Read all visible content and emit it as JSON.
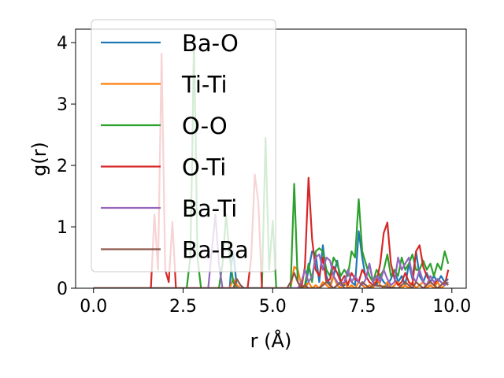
{
  "chart_data": {
    "type": "line",
    "xlabel": "r (Å)",
    "ylabel": "g(r)",
    "xlim": [
      -0.5,
      10.4
    ],
    "ylim": [
      0,
      4.22
    ],
    "xticks": [
      "0.0",
      "2.5",
      "5.0",
      "7.5",
      "10.0"
    ],
    "xtick_values": [
      0,
      2.5,
      5,
      7.5,
      10
    ],
    "yticks": [
      "0",
      "1",
      "2",
      "3",
      "4"
    ],
    "ytick_values": [
      0,
      1,
      2,
      3,
      4
    ],
    "grid": false,
    "legend_position": "upper-left",
    "series": [
      {
        "name": "Ba-O",
        "color": "#1f77b4",
        "x": [
          0,
          1.6,
          1.7,
          3.8,
          3.85,
          3.9,
          3.95,
          4.0,
          5.9,
          6.0,
          6.1,
          6.2,
          6.3,
          6.4,
          6.5,
          6.6,
          6.7,
          6.8,
          6.9,
          7.0,
          7.1,
          7.2,
          7.3,
          7.4,
          7.5,
          7.6,
          7.7,
          7.8,
          7.9,
          8.0,
          8.1,
          8.2,
          8.3,
          8.4,
          8.5,
          8.6,
          8.7,
          8.8,
          8.9,
          9.0,
          9.1,
          9.2,
          9.3,
          9.4,
          9.5,
          9.6,
          9.7,
          9.8,
          9.9
        ],
        "y": [
          0,
          0,
          0,
          0,
          0.4,
          0.6,
          0.3,
          0,
          0,
          0.3,
          0.6,
          0.55,
          0.1,
          0.7,
          0.2,
          0.05,
          0.2,
          0.45,
          0.1,
          0.05,
          0.3,
          0.1,
          0.05,
          0.93,
          0.5,
          0.15,
          0.4,
          0.1,
          0.05,
          0.2,
          0.1,
          0.05,
          0.15,
          0.3,
          0.1,
          0.2,
          0.05,
          0.4,
          0.15,
          0.6,
          0.2,
          0.1,
          0.25,
          0.1,
          0.2,
          0.1,
          0.2,
          0.1,
          0.15
        ]
      },
      {
        "name": "Ti-Ti",
        "color": "#ff7f0e",
        "x": [
          0,
          3.8,
          3.9,
          4.0,
          4.1,
          5.5,
          5.6,
          5.7,
          5.8,
          5.9,
          6.0,
          6.1,
          6.2,
          6.3,
          6.4,
          6.5,
          6.6,
          6.7,
          6.8,
          6.9,
          7.0,
          7.1,
          7.2,
          7.3,
          7.4,
          7.5,
          7.6,
          7.7,
          7.8,
          7.9,
          8.0,
          8.1,
          8.2,
          8.3,
          8.4,
          8.5,
          8.6,
          8.7,
          8.8,
          8.9,
          9.0,
          9.1,
          9.2,
          9.3,
          9.4,
          9.5,
          9.6,
          9.7,
          9.8,
          9.9
        ],
        "y": [
          0,
          0,
          0.15,
          0.05,
          0,
          0,
          0.35,
          0.3,
          0.05,
          0,
          0.1,
          0,
          0.05,
          0,
          0.1,
          0.05,
          0,
          0.2,
          0.05,
          0,
          0.1,
          0,
          0.05,
          0,
          0.1,
          0.05,
          0,
          0.05,
          0,
          0.15,
          0.05,
          0,
          0.1,
          0,
          0.05,
          0.1,
          0,
          0.05,
          0,
          0.1,
          0,
          0.05,
          0.1,
          0,
          0.05,
          0,
          0.1,
          0,
          0.05,
          0.1
        ]
      },
      {
        "name": "O-O",
        "color": "#2ca02c",
        "x": [
          0,
          2.6,
          2.7,
          2.75,
          2.8,
          2.85,
          2.9,
          3.0,
          3.5,
          3.6,
          3.7,
          3.8,
          3.9,
          4.0,
          4.7,
          4.8,
          4.9,
          5.0,
          5.1,
          5.5,
          5.6,
          5.7,
          5.8,
          5.9,
          6.0,
          6.1,
          6.2,
          6.3,
          6.4,
          6.5,
          6.6,
          6.7,
          6.8,
          6.9,
          7.0,
          7.1,
          7.2,
          7.3,
          7.4,
          7.5,
          7.6,
          7.7,
          7.8,
          7.9,
          8.0,
          8.1,
          8.2,
          8.3,
          8.4,
          8.5,
          8.6,
          8.7,
          8.8,
          8.9,
          9.0,
          9.1,
          9.2,
          9.3,
          9.4,
          9.5,
          9.6,
          9.7,
          9.8,
          9.9
        ],
        "y": [
          0,
          0,
          0.5,
          2.0,
          4.0,
          2.5,
          0.5,
          0,
          0,
          0.4,
          1.2,
          0.5,
          0.1,
          0,
          0,
          2.45,
          0.3,
          1.1,
          0,
          0,
          1.7,
          0.1,
          0,
          0.05,
          0.4,
          0.1,
          0.6,
          0.65,
          0.6,
          0.3,
          0.2,
          0.5,
          0.4,
          0.2,
          0.3,
          0.2,
          0.6,
          0.5,
          1.45,
          0.6,
          0.4,
          0.2,
          0.1,
          0.3,
          0.2,
          0.3,
          0.55,
          0.2,
          0.3,
          0.2,
          0.5,
          0.3,
          0.4,
          0.55,
          0.3,
          0.3,
          0.45,
          0.3,
          0.4,
          0.2,
          0.4,
          0.3,
          0.6,
          0.4
        ]
      },
      {
        "name": "O-Ti",
        "color": "#d62728",
        "x": [
          0,
          1.6,
          1.7,
          1.8,
          1.9,
          2.0,
          2.1,
          2.2,
          2.3,
          4.3,
          4.4,
          4.5,
          4.6,
          4.7,
          5.8,
          5.9,
          6.0,
          6.1,
          6.2,
          6.3,
          6.4,
          6.5,
          6.6,
          6.7,
          6.8,
          6.9,
          7.0,
          7.1,
          7.2,
          7.3,
          7.4,
          7.5,
          7.6,
          7.7,
          7.8,
          7.9,
          8.0,
          8.1,
          8.2,
          8.3,
          8.4,
          8.5,
          8.6,
          8.7,
          8.8,
          8.9,
          9.0,
          9.1,
          9.2,
          9.3,
          9.4,
          9.5,
          9.6,
          9.7,
          9.8,
          9.9
        ],
        "y": [
          0,
          0,
          1.2,
          0.3,
          3.82,
          0.3,
          0.1,
          1.08,
          0,
          0,
          0.5,
          1.85,
          1.4,
          0,
          0,
          0.35,
          1.8,
          0.8,
          0.3,
          0.2,
          0.5,
          0.1,
          0.15,
          0.35,
          0.25,
          0.1,
          0.2,
          0.05,
          0.25,
          0.15,
          0.1,
          0.3,
          0.2,
          0.1,
          0.05,
          0.1,
          0.4,
          0.9,
          1.07,
          0.4,
          0.15,
          0.05,
          0.1,
          0.25,
          0.1,
          0.05,
          0.6,
          0.7,
          0.35,
          0.2,
          0.1,
          0.05,
          0.15,
          0.1,
          0.05,
          0.3
        ]
      },
      {
        "name": "Ba-Ti",
        "color": "#9467bd",
        "x": [
          0,
          3.2,
          3.3,
          3.4,
          3.5,
          3.6,
          5.7,
          5.8,
          5.9,
          6.0,
          6.1,
          6.2,
          6.3,
          6.4,
          6.5,
          6.6,
          6.7,
          6.8,
          6.9,
          7.0,
          7.1,
          7.2,
          7.3,
          7.4,
          7.5,
          7.6,
          7.7,
          7.8,
          7.9,
          8.0,
          8.1,
          8.2,
          8.3,
          8.4,
          8.5,
          8.6,
          8.7,
          8.8,
          8.9,
          9.0,
          9.1,
          9.2,
          9.3,
          9.4,
          9.5,
          9.6,
          9.7,
          9.8,
          9.9
        ],
        "y": [
          0,
          0,
          0.6,
          1.2,
          0.4,
          0,
          0,
          0.1,
          0.3,
          0.1,
          0.2,
          0.5,
          0.55,
          0.3,
          0.5,
          0.45,
          0.2,
          0.1,
          0.05,
          0.1,
          0.3,
          0.1,
          0.2,
          0.1,
          0.05,
          0.15,
          0.4,
          0.1,
          0.2,
          0.1,
          0.3,
          0.15,
          0.05,
          0.1,
          0.5,
          0.3,
          0.4,
          0.5,
          0.2,
          0.1,
          0.3,
          0.1,
          0.05,
          0.2,
          0.1,
          0.15,
          0.1,
          0.05,
          0.1
        ]
      },
      {
        "name": "Ba-Ba",
        "color": "#8c564b",
        "x": [
          0,
          3.9,
          4.0,
          4.1,
          4.2,
          5.4,
          5.5,
          5.6,
          5.7,
          5.8,
          5.9,
          6.0,
          6.3,
          6.4,
          6.5,
          6.6,
          6.7,
          6.8,
          6.9,
          7.0,
          7.4,
          7.5,
          7.6,
          7.7,
          7.8,
          8.5,
          8.6,
          8.7,
          8.8,
          8.9,
          9.0,
          9.1,
          9.2,
          9.3,
          9.4,
          9.5,
          9.6,
          9.7,
          9.8,
          9.9
        ],
        "y": [
          0,
          0,
          0.15,
          0.05,
          0,
          0,
          0.1,
          0.25,
          0.1,
          0,
          0.05,
          0,
          0,
          0.05,
          0.1,
          0.05,
          0,
          0.05,
          0.1,
          0,
          0,
          0.1,
          0.05,
          0,
          0.05,
          0,
          0.05,
          0.1,
          0.05,
          0,
          0.1,
          0.05,
          0,
          0.05,
          0.1,
          0.05,
          0,
          0.05,
          0.1,
          0.05
        ]
      }
    ]
  }
}
